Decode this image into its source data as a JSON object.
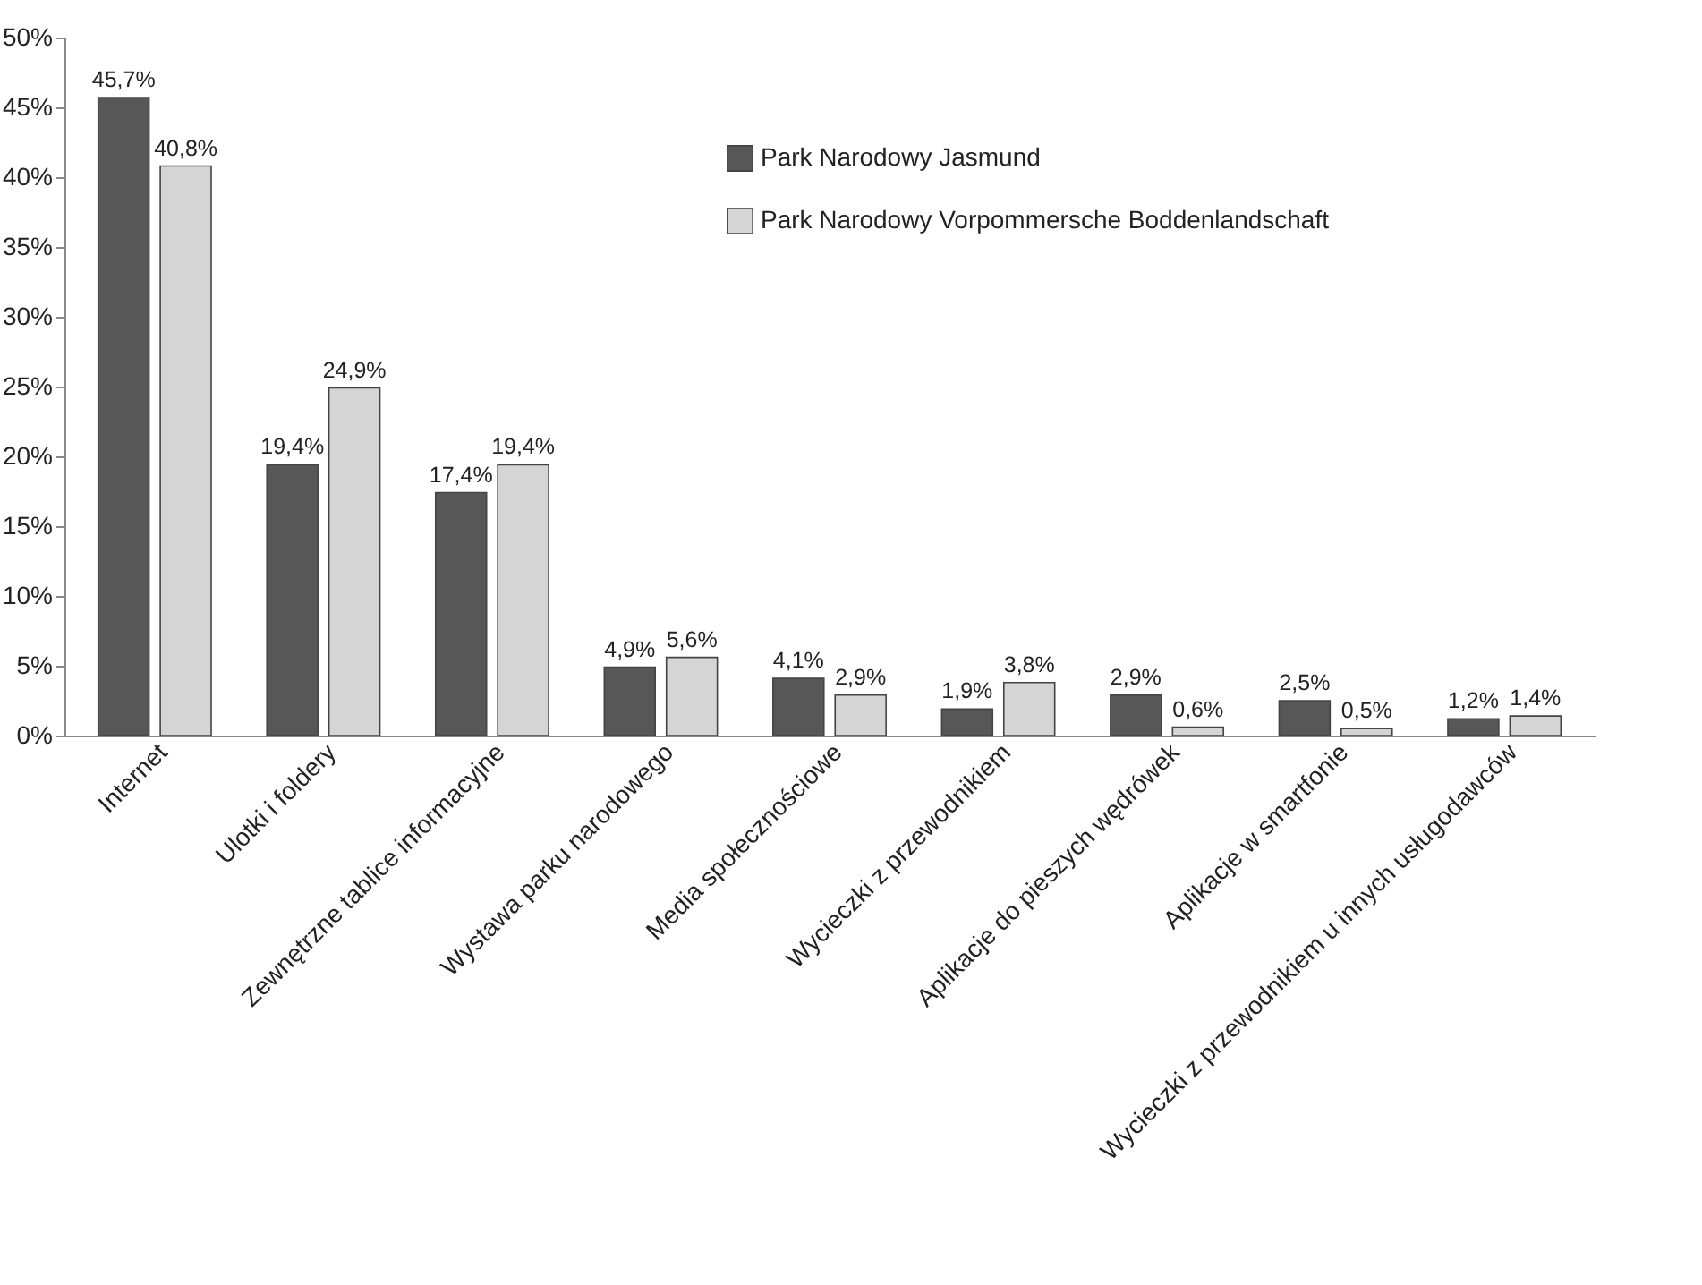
{
  "chart_data": {
    "type": "bar",
    "categories": [
      "Internet",
      "Ulotki i foldery",
      "Zewnętrzne tablice informacyjne",
      "Wystawa parku narodowego",
      "Media społecznościowe",
      "Wycieczki z przewodnikiem",
      "Aplikacje do pieszych wędrówek",
      "Aplikacje w smartfonie",
      "Wycieczki z przewodnikiem u innych usługodawców"
    ],
    "series": [
      {
        "name": "Park Narodowy Jasmund",
        "color": "#575757",
        "values": [
          45.7,
          19.4,
          17.4,
          4.9,
          4.1,
          1.9,
          2.9,
          2.5,
          1.2
        ],
        "value_labels": [
          "45,7%",
          "19,4%",
          "17,4%",
          "4,9%",
          "4,1%",
          "1,9%",
          "2,9%",
          "2,5%",
          "1,2%"
        ]
      },
      {
        "name": "Park Narodowy Vorpommersche Boddenlandschaft",
        "color": "#d5d5d5",
        "values": [
          40.8,
          24.9,
          19.4,
          5.6,
          2.9,
          3.8,
          0.6,
          0.5,
          1.4
        ],
        "value_labels": [
          "40,8%",
          "24,9%",
          "19,4%",
          "5,6%",
          "2,9%",
          "3,8%",
          "0,6%",
          "0,5%",
          "1,4%"
        ]
      }
    ],
    "ylim": [
      0,
      50
    ],
    "yticks": [
      {
        "value": 0,
        "label": "0%"
      },
      {
        "value": 5,
        "label": "5%"
      },
      {
        "value": 10,
        "label": "10%"
      },
      {
        "value": 15,
        "label": "15%"
      },
      {
        "value": 20,
        "label": "20%"
      },
      {
        "value": 25,
        "label": "25%"
      },
      {
        "value": 30,
        "label": "30%"
      },
      {
        "value": 35,
        "label": "35%"
      },
      {
        "value": 40,
        "label": "40%"
      },
      {
        "value": 45,
        "label": "45%"
      },
      {
        "value": 50,
        "label": "50%"
      }
    ],
    "grid": false,
    "legend": "top right"
  }
}
